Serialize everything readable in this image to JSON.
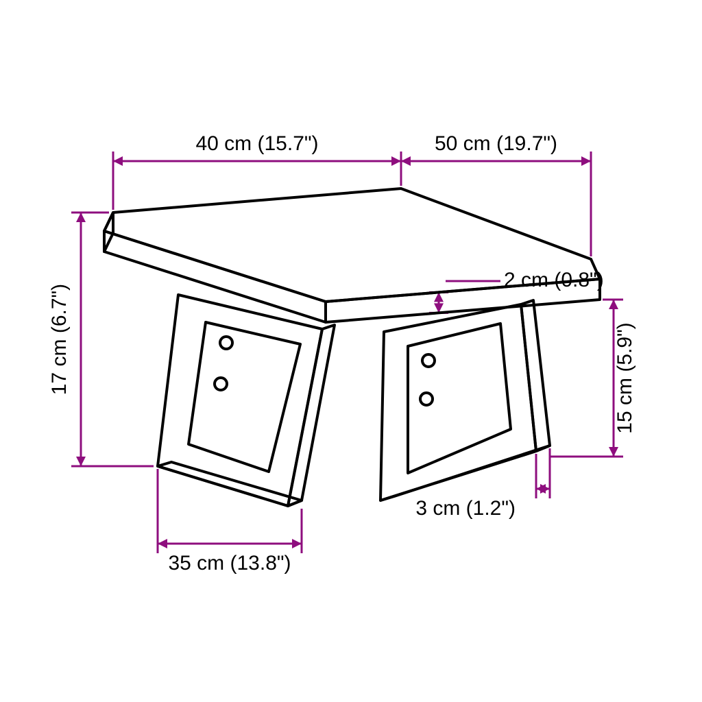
{
  "diagram": {
    "type": "technical-drawing",
    "background_color": "#ffffff",
    "outline_color": "#000000",
    "outline_width": 4,
    "dimension_color": "#8e0e7e",
    "dimension_stroke_width": 3,
    "end_tick_length": 14,
    "label_fontsize": 30,
    "labels": {
      "top_left": "40 cm (15.7\")",
      "top_right": "50 cm (19.7\")",
      "left": "17 cm (6.7\")",
      "right": "15 cm (5.9\")",
      "thickness": "2 cm (0.8\")",
      "bottom_left": "35 cm (13.8\")",
      "bottom_right": "3 cm (1.2\")"
    }
  }
}
